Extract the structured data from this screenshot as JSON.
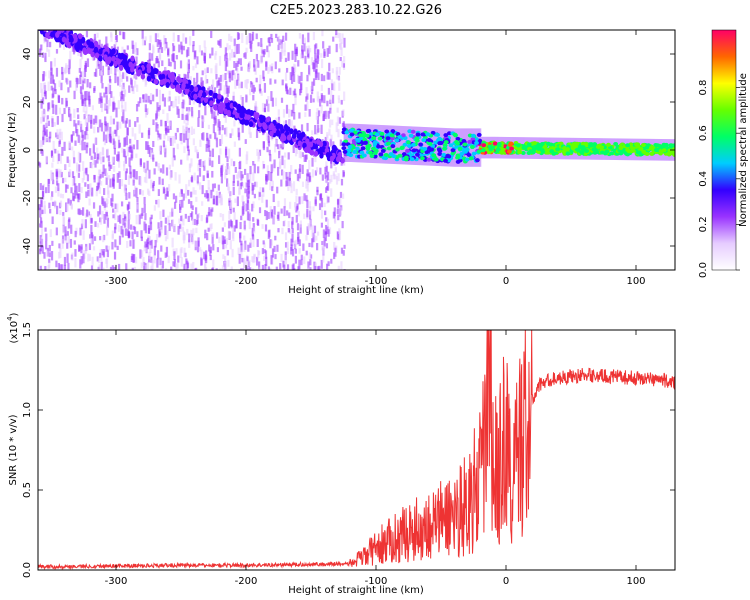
{
  "title": "C2E5.2023.283.10.22.G26",
  "chart_data": [
    {
      "type": "heatmap",
      "title": "C2E5.2023.283.10.22.G26",
      "xlabel": "Height of straight line (km)",
      "ylabel": "Frequency (Hz)",
      "xlim": [
        -360,
        130
      ],
      "ylim": [
        -50,
        50
      ],
      "x_ticks": [
        "-300",
        "-200",
        "-100",
        "0",
        "100"
      ],
      "y_ticks": [
        "40",
        "20",
        "0",
        "-20",
        "-40"
      ],
      "colorbar": {
        "label": "Normalized spectral amplitude",
        "range": [
          0,
          1
        ],
        "ticks": [
          "0.0",
          "0.2",
          "0.4",
          "0.6",
          "0.8"
        ],
        "colormap": [
          "#ffffff",
          "#e6ccff",
          "#9933ff",
          "#3300ff",
          "#00ccff",
          "#00ff66",
          "#66ff00",
          "#ffff00",
          "#ff6600",
          "#ff0066"
        ]
      },
      "features": {
        "descending_track": [
          [
            -360,
            52
          ],
          [
            -300,
            38
          ],
          [
            -250,
            27
          ],
          [
            -200,
            14
          ],
          [
            -150,
            2
          ],
          [
            -125,
            -3
          ]
        ],
        "noisy_region_x": [
          -360,
          -125
        ],
        "signal_band": [
          [
            -120,
            3
          ],
          [
            -80,
            2
          ],
          [
            -40,
            1
          ],
          [
            -10,
            1
          ],
          [
            130,
            0
          ]
        ],
        "saturated_spot_x": [
          -20,
          5
        ]
      },
      "grid": false
    },
    {
      "type": "line",
      "xlabel": "Height of straight line (km)",
      "ylabel": "SNR (10 * v/v)",
      "y_multiplier": "(x10^4)",
      "y_multiplier_base": "(x10",
      "y_multiplier_exp": "4",
      "xlim": [
        -360,
        130
      ],
      "ylim": [
        0,
        1.5
      ],
      "x_ticks": [
        "-300",
        "-200",
        "-100",
        "0",
        "100"
      ],
      "y_ticks": [
        "0.0",
        "0.5",
        "1.0",
        "1.5"
      ],
      "series_color": "#ee3333",
      "series": [
        {
          "x": [
            -360,
            -300,
            -250,
            -200,
            -150,
            -120,
            -110,
            -100,
            -80,
            -60,
            -40,
            -30,
            -20,
            -15,
            -12,
            -10,
            -5,
            0,
            5,
            10,
            15,
            20,
            25,
            30,
            40,
            60,
            80,
            100,
            120,
            130
          ],
          "y": [
            0.02,
            0.025,
            0.03,
            0.03,
            0.035,
            0.04,
            0.08,
            0.14,
            0.22,
            0.28,
            0.35,
            0.42,
            0.55,
            0.9,
            1.5,
            0.6,
            0.65,
            0.85,
            0.5,
            0.8,
            0.9,
            1.05,
            1.15,
            1.18,
            1.2,
            1.22,
            1.21,
            1.2,
            1.19,
            1.17
          ]
        }
      ],
      "grid": false
    }
  ]
}
